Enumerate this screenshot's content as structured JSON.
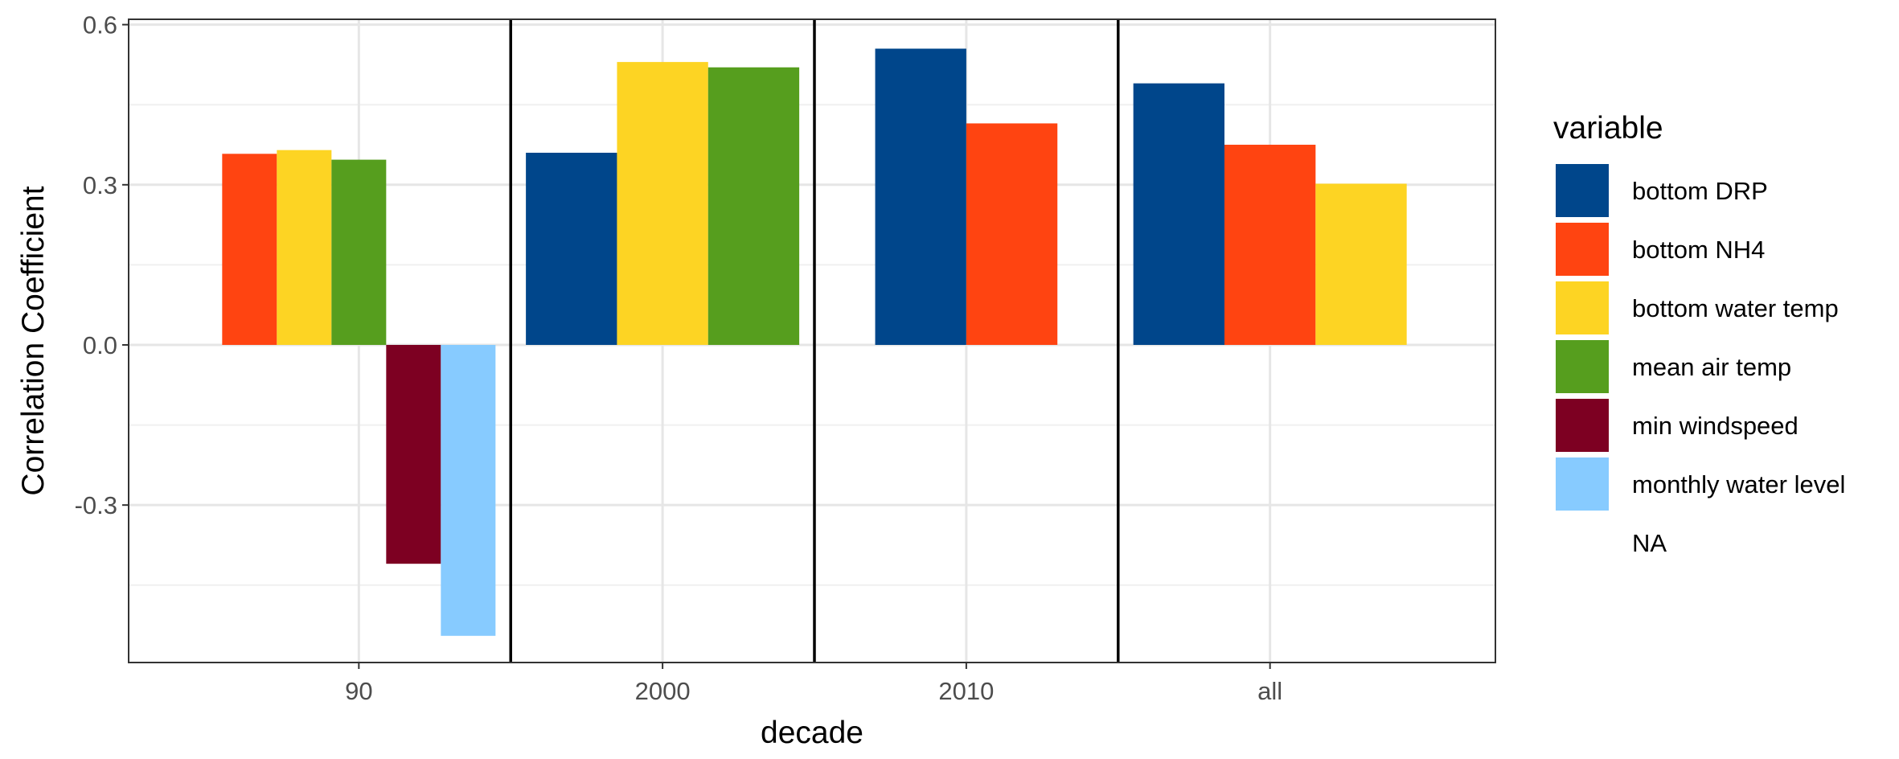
{
  "chart_data": {
    "type": "bar",
    "categories": [
      "90",
      "2000",
      "2010",
      "all"
    ],
    "xlabel": "decade",
    "ylabel": "Correlation Coefficient",
    "ylim": [
      -0.595,
      0.61
    ],
    "yticks": [
      -0.3,
      0.0,
      0.3,
      0.6
    ],
    "ytick_labels": [
      "-0.3",
      "0.0",
      "0.3",
      "0.6"
    ],
    "grid": true,
    "legend": {
      "title": "variable",
      "placement": "right",
      "entries": [
        {
          "name": "bottom DRP",
          "color": "#00468B"
        },
        {
          "name": "bottom NH4",
          "color": "#FF4411"
        },
        {
          "name": "bottom water temp",
          "color": "#FDD423"
        },
        {
          "name": "mean air temp",
          "color": "#569E1E"
        },
        {
          "name": "min windspeed",
          "color": "#7D0022"
        },
        {
          "name": "monthly water level",
          "color": "#87CBFF"
        },
        {
          "name": "NA",
          "color": null
        }
      ]
    },
    "groups": [
      {
        "category": "90",
        "bars": [
          {
            "variable": "bottom NH4",
            "value": 0.358
          },
          {
            "variable": "bottom water temp",
            "value": 0.365
          },
          {
            "variable": "mean air temp",
            "value": 0.347
          },
          {
            "variable": "min windspeed",
            "value": -0.41
          },
          {
            "variable": "monthly water level",
            "value": -0.545
          }
        ]
      },
      {
        "category": "2000",
        "bars": [
          {
            "variable": "bottom DRP",
            "value": 0.36
          },
          {
            "variable": "bottom water temp",
            "value": 0.53
          },
          {
            "variable": "mean air temp",
            "value": 0.52
          }
        ]
      },
      {
        "category": "2010",
        "bars": [
          {
            "variable": "bottom DRP",
            "value": 0.555
          },
          {
            "variable": "bottom NH4",
            "value": 0.415
          }
        ]
      },
      {
        "category": "all",
        "bars": [
          {
            "variable": "bottom DRP",
            "value": 0.49
          },
          {
            "variable": "bottom NH4",
            "value": 0.375
          },
          {
            "variable": "bottom water temp",
            "value": 0.302
          }
        ]
      }
    ]
  }
}
